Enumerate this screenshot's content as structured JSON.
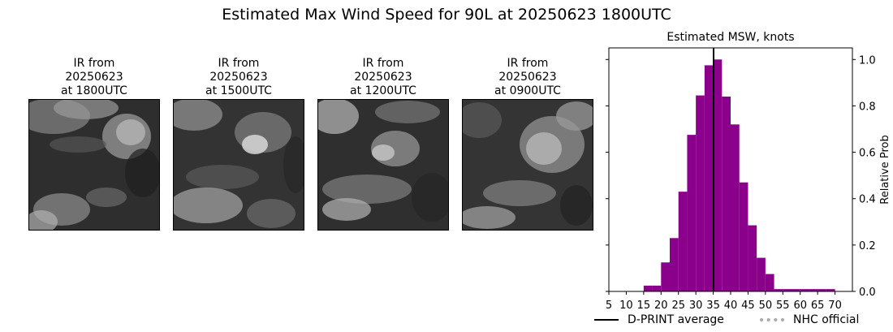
{
  "suptitle": "Estimated Max Wind Speed for 90L at 20250623 1800UTC",
  "ir_panels": [
    {
      "line1": "IR from",
      "line2": "20250623",
      "line3": "at 1800UTC"
    },
    {
      "line1": "IR from",
      "line2": "20250623",
      "line3": "at 1500UTC"
    },
    {
      "line1": "IR from",
      "line2": "20250623",
      "line3": "at 1200UTC"
    },
    {
      "line1": "IR from",
      "line2": "20250623",
      "line3": "at 0900UTC"
    }
  ],
  "legend": {
    "dprint_label": "D-PRINT average",
    "nhc_label": "NHC official"
  },
  "colors": {
    "bar": "#8b008b",
    "dprint_line": "#000000",
    "nhc_line": "#a9a9a9"
  },
  "chart_data": {
    "type": "bar",
    "title": "Estimated MSW, knots",
    "xlabel": "",
    "ylabel": "Relative Prob",
    "xlim": [
      5,
      75
    ],
    "ylim": [
      0,
      1.05
    ],
    "xticks": [
      5,
      10,
      15,
      20,
      25,
      30,
      35,
      40,
      45,
      50,
      55,
      60,
      65,
      70
    ],
    "yticks": [
      0.0,
      0.2,
      0.4,
      0.6,
      0.8,
      1.0
    ],
    "ytick_labels": [
      "0.0",
      "0.2",
      "0.4",
      "0.6",
      "0.8",
      "1.0"
    ],
    "bin_width": 2.5,
    "bins": [
      {
        "x0": 15,
        "y": 0.025
      },
      {
        "x0": 17.5,
        "y": 0.025
      },
      {
        "x0": 20,
        "y": 0.125
      },
      {
        "x0": 22.5,
        "y": 0.23
      },
      {
        "x0": 25,
        "y": 0.43
      },
      {
        "x0": 27.5,
        "y": 0.675
      },
      {
        "x0": 30,
        "y": 0.845
      },
      {
        "x0": 32.5,
        "y": 0.975
      },
      {
        "x0": 35,
        "y": 1.0
      },
      {
        "x0": 37.5,
        "y": 0.84
      },
      {
        "x0": 40,
        "y": 0.72
      },
      {
        "x0": 42.5,
        "y": 0.47
      },
      {
        "x0": 45,
        "y": 0.285
      },
      {
        "x0": 47.5,
        "y": 0.145
      },
      {
        "x0": 50,
        "y": 0.075
      },
      {
        "x0": 52.5,
        "y": 0.01
      },
      {
        "x0": 55,
        "y": 0.01
      },
      {
        "x0": 57.5,
        "y": 0.01
      },
      {
        "x0": 60,
        "y": 0.01
      },
      {
        "x0": 62.5,
        "y": 0.01
      },
      {
        "x0": 65,
        "y": 0.01
      },
      {
        "x0": 67.5,
        "y": 0.01
      }
    ],
    "dprint_average": 35.1
  }
}
